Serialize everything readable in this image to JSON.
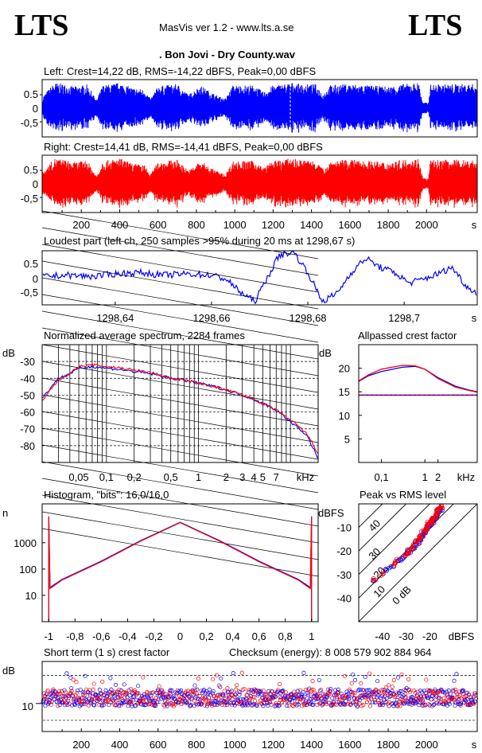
{
  "header": {
    "logo_left": "LTS",
    "logo_right": "LTS",
    "app_title": "MasVis ver 1.2 - www.lts.a.se",
    "file_title": ". Bon Jovi - Dry County.wav"
  },
  "colors": {
    "left": "#0000ff",
    "right": "#ff0000"
  },
  "chart_data": [
    {
      "id": "left-waveform",
      "type": "area",
      "title": "Left: Crest=14,22 dB, RMS=-14,22 dBFS, Peak=0,00 dBFS",
      "yticks": [
        "0.5",
        "0",
        "-0,5"
      ],
      "ylim": [
        -1,
        1
      ],
      "xlim": [
        0,
        2260
      ],
      "envelope": [
        [
          0,
          0.45
        ],
        [
          60,
          0.95
        ],
        [
          110,
          0.9
        ],
        [
          160,
          0.8
        ],
        [
          230,
          0.88
        ],
        [
          280,
          0.3
        ],
        [
          310,
          0.85
        ],
        [
          400,
          0.95
        ],
        [
          470,
          0.75
        ],
        [
          530,
          0.7
        ],
        [
          560,
          0.35
        ],
        [
          600,
          0.82
        ],
        [
          700,
          0.9
        ],
        [
          760,
          0.5
        ],
        [
          820,
          0.85
        ],
        [
          900,
          0.5
        ],
        [
          950,
          0.35
        ],
        [
          990,
          0.85
        ],
        [
          1100,
          0.85
        ],
        [
          1150,
          0.6
        ],
        [
          1200,
          0.85
        ],
        [
          1300,
          0.95
        ],
        [
          1350,
          0.88
        ],
        [
          1420,
          0.9
        ],
        [
          1460,
          0.55
        ],
        [
          1500,
          0.86
        ],
        [
          1600,
          0.9
        ],
        [
          1700,
          0.85
        ],
        [
          1800,
          0.8
        ],
        [
          1880,
          0.9
        ],
        [
          1960,
          0.95
        ],
        [
          1980,
          0.22
        ],
        [
          2010,
          0.2
        ],
        [
          2020,
          0.88
        ],
        [
          2150,
          0.9
        ],
        [
          2260,
          0.9
        ]
      ]
    },
    {
      "id": "right-waveform",
      "type": "area",
      "title": "Right: Crest=14,41 dB, RMS=-14,41 dBFS, Peak=0,00 dBFS",
      "yticks": [
        "0.5",
        "0",
        "-0,5"
      ],
      "ylim": [
        -1,
        1
      ],
      "xlim": [
        0,
        2260
      ],
      "xticks": [
        "200",
        "400",
        "600",
        "800",
        "1000",
        "1200",
        "1400",
        "1600",
        "1800",
        "2000"
      ],
      "xunit": "s",
      "envelope": [
        [
          0,
          0.45
        ],
        [
          60,
          0.95
        ],
        [
          110,
          0.9
        ],
        [
          160,
          0.8
        ],
        [
          230,
          0.88
        ],
        [
          280,
          0.3
        ],
        [
          310,
          0.85
        ],
        [
          400,
          0.95
        ],
        [
          470,
          0.75
        ],
        [
          530,
          0.7
        ],
        [
          560,
          0.35
        ],
        [
          600,
          0.82
        ],
        [
          700,
          0.9
        ],
        [
          760,
          0.5
        ],
        [
          820,
          0.85
        ],
        [
          900,
          0.5
        ],
        [
          950,
          0.35
        ],
        [
          990,
          0.85
        ],
        [
          1100,
          0.85
        ],
        [
          1150,
          0.6
        ],
        [
          1200,
          0.85
        ],
        [
          1300,
          0.95
        ],
        [
          1350,
          0.88
        ],
        [
          1420,
          0.9
        ],
        [
          1460,
          0.55
        ],
        [
          1500,
          0.86
        ],
        [
          1600,
          0.9
        ],
        [
          1700,
          0.85
        ],
        [
          1800,
          0.8
        ],
        [
          1880,
          0.9
        ],
        [
          1960,
          0.95
        ],
        [
          1980,
          0.22
        ],
        [
          2010,
          0.2
        ],
        [
          2020,
          0.88
        ],
        [
          2150,
          0.9
        ],
        [
          2260,
          0.9
        ]
      ]
    },
    {
      "id": "loudest-part",
      "type": "line",
      "title": "Loudest part (left  ch, 250 samples >95% during 20 ms at 1298,67 s)",
      "yticks": [
        "0.5",
        "0",
        "-0,5"
      ],
      "ylim": [
        -1,
        1
      ],
      "xlim": [
        1298.625,
        1298.715
      ],
      "xticks": [
        "1298,64",
        "1298,66",
        "1298,68",
        "1298,7"
      ],
      "xunit": "s",
      "points": [
        [
          1298.625,
          0.05
        ],
        [
          1298.63,
          0.1
        ],
        [
          1298.635,
          0.05
        ],
        [
          1298.64,
          0.15
        ],
        [
          1298.645,
          0.2
        ],
        [
          1298.65,
          0.1
        ],
        [
          1298.655,
          0.15
        ],
        [
          1298.66,
          0.1
        ],
        [
          1298.663,
          -0.05
        ],
        [
          1298.666,
          -0.55
        ],
        [
          1298.669,
          -0.9
        ],
        [
          1298.672,
          0.15
        ],
        [
          1298.674,
          0.85
        ],
        [
          1298.677,
          1.0
        ],
        [
          1298.68,
          0.2
        ],
        [
          1298.683,
          -0.9
        ],
        [
          1298.686,
          -0.6
        ],
        [
          1298.689,
          0.2
        ],
        [
          1298.692,
          0.75
        ],
        [
          1298.695,
          0.4
        ],
        [
          1298.698,
          0.2
        ],
        [
          1298.701,
          -0.2
        ],
        [
          1298.704,
          -0.05
        ],
        [
          1298.707,
          0.15
        ],
        [
          1298.71,
          0.4
        ],
        [
          1298.713,
          -0.35
        ],
        [
          1298.715,
          -0.55
        ]
      ]
    },
    {
      "id": "average-spectrum",
      "type": "line",
      "title": "Normalized average spectrum, 2284 frames",
      "ylabel": "dB",
      "ylim": [
        -90,
        -20
      ],
      "yticks": [
        "-30",
        "-40",
        "-50",
        "-60",
        "-70",
        "-80"
      ],
      "xlabel": "kHz",
      "xscale": "log",
      "xlim": [
        0.02,
        20
      ],
      "xticks": [
        "0,05",
        "0,1",
        "0,2",
        "0,5",
        "1",
        "2",
        "3",
        "4",
        "5",
        "7"
      ],
      "series": [
        {
          "name": "",
          "color": "#0000ff",
          "points": [
            [
              0.02,
              -52
            ],
            [
              0.025,
              -45
            ],
            [
              0.03,
              -40
            ],
            [
              0.04,
              -37
            ],
            [
              0.05,
              -34
            ],
            [
              0.07,
              -33
            ],
            [
              0.1,
              -34
            ],
            [
              0.2,
              -36
            ],
            [
              0.5,
              -40
            ],
            [
              1,
              -43
            ],
            [
              2,
              -47
            ],
            [
              3,
              -50
            ],
            [
              5,
              -55
            ],
            [
              7,
              -59
            ],
            [
              10,
              -66
            ],
            [
              15,
              -74
            ],
            [
              20,
              -88
            ]
          ]
        },
        {
          "name": "",
          "color": "#ff0000",
          "points": [
            [
              0.02,
              -54
            ],
            [
              0.025,
              -46
            ],
            [
              0.03,
              -41
            ],
            [
              0.04,
              -37
            ],
            [
              0.05,
              -33
            ],
            [
              0.07,
              -32
            ],
            [
              0.1,
              -33
            ],
            [
              0.2,
              -35
            ],
            [
              0.5,
              -40
            ],
            [
              1,
              -43
            ],
            [
              2,
              -47
            ],
            [
              3,
              -50
            ],
            [
              5,
              -55
            ],
            [
              7,
              -59
            ],
            [
              10,
              -65
            ],
            [
              15,
              -73
            ],
            [
              20,
              -85
            ]
          ]
        }
      ]
    },
    {
      "id": "allpassed-crest",
      "type": "line",
      "title": "Allpassed crest factor",
      "ylabel": "dB",
      "ylim": [
        0,
        25
      ],
      "yticks": [
        "20",
        "15",
        "10",
        "5"
      ],
      "xlabel": "kHz",
      "xscale": "log",
      "xlim": [
        0.03,
        16
      ],
      "xticks": [
        "0,1",
        "1",
        "2"
      ],
      "reference": 14.3,
      "series": [
        {
          "name": "",
          "color": "#0000ff",
          "points": [
            [
              0.03,
              17.2
            ],
            [
              0.05,
              18.4
            ],
            [
              0.1,
              19.3
            ],
            [
              0.3,
              20.2
            ],
            [
              0.6,
              20.4
            ],
            [
              1,
              19.8
            ],
            [
              2,
              18
            ],
            [
              5,
              16.2
            ],
            [
              10,
              15.4
            ],
            [
              16,
              15
            ]
          ]
        },
        {
          "name": "",
          "color": "#ff0000",
          "points": [
            [
              0.03,
              17.3
            ],
            [
              0.05,
              18.6
            ],
            [
              0.1,
              19.8
            ],
            [
              0.3,
              20.6
            ],
            [
              0.6,
              20.5
            ],
            [
              1,
              19.8
            ],
            [
              2,
              17.8
            ],
            [
              5,
              16
            ],
            [
              10,
              15.3
            ],
            [
              16,
              14.9
            ]
          ]
        }
      ]
    },
    {
      "id": "histogram",
      "type": "line",
      "title": "Histogram, \"bits\": 16,0/16,0",
      "ylabel": "n",
      "yscale": "log",
      "ylim": [
        1,
        30000
      ],
      "yticks": [
        "1000",
        "100",
        "10"
      ],
      "xlim": [
        -1.05,
        1.05
      ],
      "xticks": [
        "-1",
        "-0,8",
        "-0,6",
        "-0,4",
        "-0,2",
        "0",
        "0,2",
        "0,4",
        "0,6",
        "0,8",
        "1"
      ],
      "series": [
        {
          "name": "",
          "color": "#0000ff",
          "points": [
            [
              -1,
              10000
            ],
            [
              -0.99,
              20
            ],
            [
              -0.9,
              40
            ],
            [
              -0.6,
              200
            ],
            [
              -0.3,
              1200
            ],
            [
              0,
              6000
            ],
            [
              0.3,
              1200
            ],
            [
              0.6,
              200
            ],
            [
              0.9,
              40
            ],
            [
              0.99,
              20
            ],
            [
              1,
              10000
            ]
          ]
        },
        {
          "name": "",
          "color": "#ff0000",
          "points": [
            [
              -1,
              10000
            ],
            [
              -0.99,
              18
            ],
            [
              -0.9,
              38
            ],
            [
              -0.6,
              190
            ],
            [
              -0.3,
              1150
            ],
            [
              0,
              5800
            ],
            [
              0.3,
              1150
            ],
            [
              0.6,
              190
            ],
            [
              0.9,
              38
            ],
            [
              0.99,
              18
            ],
            [
              1,
              10000
            ]
          ]
        }
      ]
    },
    {
      "id": "peak-vs-rms",
      "type": "scatter",
      "title": "Peak vs RMS level",
      "ylabel": "dBFS",
      "xlabel": "dBFS",
      "xlim": [
        -50,
        0
      ],
      "ylim": [
        -50,
        0
      ],
      "yticks": [
        "-10",
        "-20",
        "-30",
        "-40"
      ],
      "xticks": [
        "-40",
        "-30",
        "-20"
      ],
      "crest_lines": [
        "40",
        "30",
        "20",
        "10",
        "0 dB"
      ],
      "points_left": [
        [
          -45,
          -33
        ],
        [
          -38,
          -28
        ],
        [
          -33,
          -24
        ],
        [
          -30,
          -21
        ],
        [
          -28,
          -20
        ],
        [
          -26,
          -17
        ],
        [
          -24,
          -15
        ],
        [
          -23,
          -13
        ],
        [
          -22,
          -12
        ],
        [
          -21,
          -10
        ],
        [
          -20,
          -9
        ],
        [
          -19,
          -8
        ],
        [
          -18,
          -6
        ],
        [
          -17,
          -5
        ],
        [
          -16,
          -3
        ],
        [
          -15,
          -2
        ]
      ],
      "points_right": [
        [
          -44,
          -32
        ],
        [
          -36,
          -27
        ],
        [
          -32,
          -23
        ],
        [
          -29,
          -20
        ],
        [
          -27,
          -18
        ],
        [
          -25,
          -16
        ],
        [
          -24,
          -14
        ],
        [
          -22,
          -11
        ],
        [
          -21,
          -9
        ],
        [
          -20,
          -8
        ],
        [
          -19,
          -7
        ],
        [
          -18,
          -5
        ],
        [
          -17,
          -4
        ],
        [
          -16,
          -2
        ],
        [
          -15,
          -1
        ]
      ]
    },
    {
      "id": "short-term-crest",
      "type": "scatter",
      "title": "Short term (1 s) crest factor",
      "checksum": "Checksum (energy):  8 008 579 902 884 964",
      "ylabel": "dB",
      "ylim": [
        0,
        25
      ],
      "yticks": [
        "10"
      ],
      "xlim": [
        0,
        2260
      ],
      "xticks": [
        "200",
        "400",
        "600",
        "800",
        "1000",
        "1200",
        "1400",
        "1600",
        "1800",
        "2000"
      ],
      "xunit": "s"
    }
  ]
}
